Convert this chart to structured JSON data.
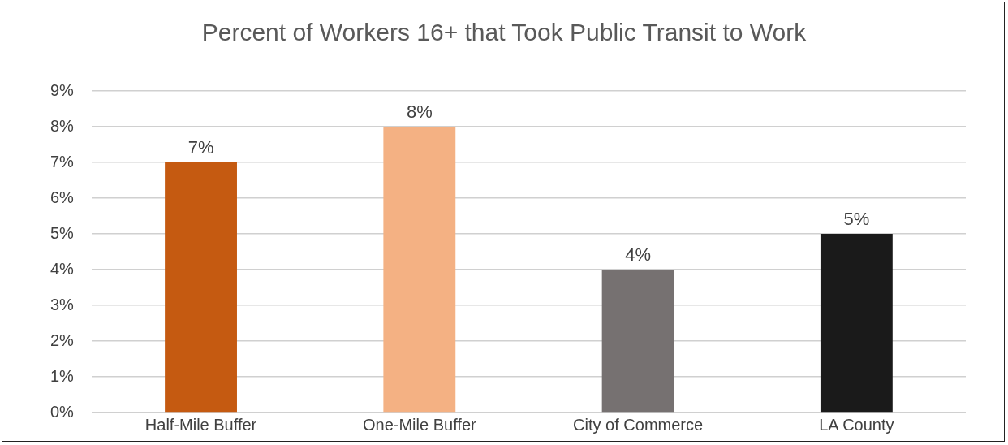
{
  "chart_data": {
    "type": "bar",
    "title": "Percent of Workers 16+ that Took Public Transit to Work",
    "categories": [
      "Half-Mile Buffer",
      "One-Mile Buffer",
      "City of Commerce",
      "LA County"
    ],
    "values": [
      7,
      8,
      4,
      5
    ],
    "colors": [
      "#c55a11",
      "#f4b183",
      "#767171",
      "#1a1a1a"
    ],
    "value_labels": [
      "7%",
      "8%",
      "4%",
      "5%"
    ],
    "ylim": [
      0,
      9
    ],
    "yticks": [
      {
        "value": 0,
        "label": "0%"
      },
      {
        "value": 1,
        "label": "1%"
      },
      {
        "value": 2,
        "label": "2%"
      },
      {
        "value": 3,
        "label": "3%"
      },
      {
        "value": 4,
        "label": "4%"
      },
      {
        "value": 5,
        "label": "5%"
      },
      {
        "value": 6,
        "label": "6%"
      },
      {
        "value": 7,
        "label": "7%"
      },
      {
        "value": 8,
        "label": "8%"
      },
      {
        "value": 9,
        "label": "9%"
      }
    ],
    "grid": "y",
    "legend": false
  }
}
